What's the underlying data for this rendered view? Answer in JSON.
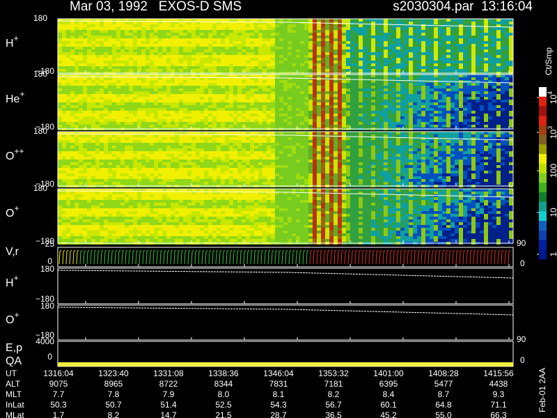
{
  "header": {
    "title": "Mar 03, 1992   EXOS-D SMS",
    "file": "s2030304.par  13:16:04"
  },
  "spectrograms": [
    {
      "label": "H",
      "charge": "+",
      "top": "180",
      "bottom": "−180"
    },
    {
      "label": "He",
      "charge": "+",
      "top": "180",
      "bottom": "−180"
    },
    {
      "label": "O",
      "charge": "++",
      "top": "180",
      "bottom": "−180"
    },
    {
      "label": "O",
      "charge": "+",
      "top": "180",
      "bottom": "−180"
    }
  ],
  "velocity_panel": {
    "label": "V,r",
    "top": "25",
    "bottom": "0",
    "right_top": "90",
    "right_bottom": "0"
  },
  "line_panels": [
    {
      "label": "H",
      "charge": "+",
      "top": "180",
      "bottom": "−180"
    },
    {
      "label": "O",
      "charge": "+",
      "top": "180",
      "bottom": "−180"
    }
  ],
  "energy_panel": {
    "label": "E,p",
    "label2": "QA",
    "top": "4000",
    "bottom": "0",
    "right_top": "90",
    "right_bottom": "0"
  },
  "colorbar": {
    "unit": "Ct/Smp",
    "ticks": [
      {
        "text": "10",
        "sup": "4"
      },
      {
        "text": "10",
        "sup": "3"
      },
      {
        "text": "100"
      },
      {
        "text": "10"
      },
      {
        "text": "1"
      }
    ]
  },
  "footer": {
    "rows": [
      {
        "label": "UT",
        "values": [
          "1316:04",
          "1323:40",
          "1331:08",
          "1338:36",
          "1346:04",
          "1353:32",
          "1401:00",
          "1408:28",
          "1415:56"
        ]
      },
      {
        "label": "ALT",
        "values": [
          "9075",
          "8965",
          "8722",
          "8344",
          "7831",
          "7181",
          "6395",
          "5477",
          "4438"
        ]
      },
      {
        "label": "MLT",
        "values": [
          "7.7",
          "7.8",
          "7.9",
          "8.0",
          "8.1",
          "8.2",
          "8.4",
          "8.7",
          "9.3"
        ]
      },
      {
        "label": "InLat",
        "values": [
          "50.3",
          "50.7",
          "51.4",
          "52.5",
          "54.3",
          "56.7",
          "60.1",
          "64.8",
          "71.1"
        ]
      },
      {
        "label": "MLat",
        "values": [
          "1.7",
          "8.2",
          "14.7",
          "21.5",
          "28.7",
          "36.5",
          "45.2",
          "55.0",
          "66.3"
        ]
      }
    ],
    "note": "Feb-01 2AA"
  }
}
